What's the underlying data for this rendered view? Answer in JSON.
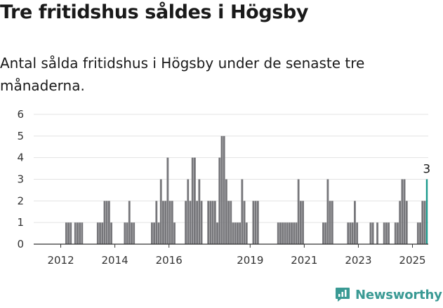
{
  "title": "Tre fritidshus såldes i Högsby",
  "subtitle": "Antal sålda fritidshus i Högsby under de senaste tre månaderna.",
  "brand": {
    "name": "Newsworthy",
    "color": "#3a9a94",
    "icon": "newsworthy-logo-icon"
  },
  "colors": {
    "bar": "#76767a",
    "highlight": "#1a9a8c",
    "grid": "#e3e3e3",
    "axis": "#333333"
  },
  "chart_data": {
    "type": "bar",
    "title": "Tre fritidshus såldes i Högsby",
    "subtitle": "Antal sålda fritidshus i Högsby under de senaste tre månaderna.",
    "xlabel": "",
    "ylabel": "",
    "ylim": [
      0,
      6
    ],
    "yticks": [
      0,
      1,
      2,
      3,
      4,
      5,
      6
    ],
    "x_tick_labels": [
      "2012",
      "2014",
      "2016",
      "2019",
      "2021",
      "2023",
      "2025"
    ],
    "x_start": "2011-01",
    "x_end": "2025-08",
    "grid": true,
    "legend": "none",
    "annotation": {
      "x": "2025-07",
      "text": "3"
    },
    "series": [
      {
        "values": [
          {
            "x": "2012-03",
            "y": 1
          },
          {
            "x": "2012-04",
            "y": 1
          },
          {
            "x": "2012-05",
            "y": 1
          },
          {
            "x": "2012-07",
            "y": 1
          },
          {
            "x": "2012-08",
            "y": 1
          },
          {
            "x": "2012-09",
            "y": 1
          },
          {
            "x": "2012-10",
            "y": 1
          },
          {
            "x": "2013-05",
            "y": 1
          },
          {
            "x": "2013-06",
            "y": 1
          },
          {
            "x": "2013-07",
            "y": 1
          },
          {
            "x": "2013-08",
            "y": 2
          },
          {
            "x": "2013-09",
            "y": 2
          },
          {
            "x": "2013-10",
            "y": 2
          },
          {
            "x": "2013-11",
            "y": 1
          },
          {
            "x": "2014-05",
            "y": 1
          },
          {
            "x": "2014-06",
            "y": 1
          },
          {
            "x": "2014-07",
            "y": 2
          },
          {
            "x": "2014-08",
            "y": 1
          },
          {
            "x": "2014-09",
            "y": 1
          },
          {
            "x": "2015-05",
            "y": 1
          },
          {
            "x": "2015-06",
            "y": 1
          },
          {
            "x": "2015-07",
            "y": 2
          },
          {
            "x": "2015-08",
            "y": 1
          },
          {
            "x": "2015-09",
            "y": 3
          },
          {
            "x": "2015-10",
            "y": 2
          },
          {
            "x": "2015-11",
            "y": 2
          },
          {
            "x": "2015-12",
            "y": 4
          },
          {
            "x": "2016-01",
            "y": 2
          },
          {
            "x": "2016-02",
            "y": 2
          },
          {
            "x": "2016-03",
            "y": 1
          },
          {
            "x": "2016-08",
            "y": 2
          },
          {
            "x": "2016-09",
            "y": 3
          },
          {
            "x": "2016-10",
            "y": 2
          },
          {
            "x": "2016-11",
            "y": 4
          },
          {
            "x": "2016-12",
            "y": 4
          },
          {
            "x": "2017-01",
            "y": 2
          },
          {
            "x": "2017-02",
            "y": 3
          },
          {
            "x": "2017-03",
            "y": 2
          },
          {
            "x": "2017-06",
            "y": 2
          },
          {
            "x": "2017-07",
            "y": 2
          },
          {
            "x": "2017-08",
            "y": 2
          },
          {
            "x": "2017-09",
            "y": 2
          },
          {
            "x": "2017-10",
            "y": 1
          },
          {
            "x": "2017-11",
            "y": 4
          },
          {
            "x": "2017-12",
            "y": 5
          },
          {
            "x": "2018-01",
            "y": 5
          },
          {
            "x": "2018-02",
            "y": 3
          },
          {
            "x": "2018-03",
            "y": 2
          },
          {
            "x": "2018-04",
            "y": 2
          },
          {
            "x": "2018-05",
            "y": 1
          },
          {
            "x": "2018-06",
            "y": 1
          },
          {
            "x": "2018-07",
            "y": 1
          },
          {
            "x": "2018-08",
            "y": 1
          },
          {
            "x": "2018-09",
            "y": 3
          },
          {
            "x": "2018-10",
            "y": 2
          },
          {
            "x": "2018-11",
            "y": 1
          },
          {
            "x": "2019-02",
            "y": 2
          },
          {
            "x": "2019-03",
            "y": 2
          },
          {
            "x": "2019-04",
            "y": 2
          },
          {
            "x": "2020-01",
            "y": 1
          },
          {
            "x": "2020-02",
            "y": 1
          },
          {
            "x": "2020-03",
            "y": 1
          },
          {
            "x": "2020-04",
            "y": 1
          },
          {
            "x": "2020-05",
            "y": 1
          },
          {
            "x": "2020-06",
            "y": 1
          },
          {
            "x": "2020-07",
            "y": 1
          },
          {
            "x": "2020-08",
            "y": 1
          },
          {
            "x": "2020-09",
            "y": 1
          },
          {
            "x": "2020-10",
            "y": 3
          },
          {
            "x": "2020-11",
            "y": 2
          },
          {
            "x": "2020-12",
            "y": 2
          },
          {
            "x": "2021-09",
            "y": 1
          },
          {
            "x": "2021-10",
            "y": 1
          },
          {
            "x": "2021-11",
            "y": 3
          },
          {
            "x": "2021-12",
            "y": 2
          },
          {
            "x": "2022-01",
            "y": 2
          },
          {
            "x": "2022-08",
            "y": 1
          },
          {
            "x": "2022-09",
            "y": 1
          },
          {
            "x": "2022-10",
            "y": 1
          },
          {
            "x": "2022-11",
            "y": 2
          },
          {
            "x": "2022-12",
            "y": 1
          },
          {
            "x": "2023-06",
            "y": 1
          },
          {
            "x": "2023-07",
            "y": 1
          },
          {
            "x": "2023-09",
            "y": 1
          },
          {
            "x": "2023-12",
            "y": 1
          },
          {
            "x": "2024-01",
            "y": 1
          },
          {
            "x": "2024-02",
            "y": 1
          },
          {
            "x": "2024-05",
            "y": 1
          },
          {
            "x": "2024-06",
            "y": 1
          },
          {
            "x": "2024-07",
            "y": 2
          },
          {
            "x": "2024-08",
            "y": 3
          },
          {
            "x": "2024-09",
            "y": 3
          },
          {
            "x": "2024-10",
            "y": 2
          },
          {
            "x": "2025-03",
            "y": 1
          },
          {
            "x": "2025-04",
            "y": 1
          },
          {
            "x": "2025-05",
            "y": 2
          },
          {
            "x": "2025-06",
            "y": 2
          },
          {
            "x": "2025-07",
            "y": 3
          }
        ]
      }
    ],
    "highlight_x": "2025-07"
  }
}
